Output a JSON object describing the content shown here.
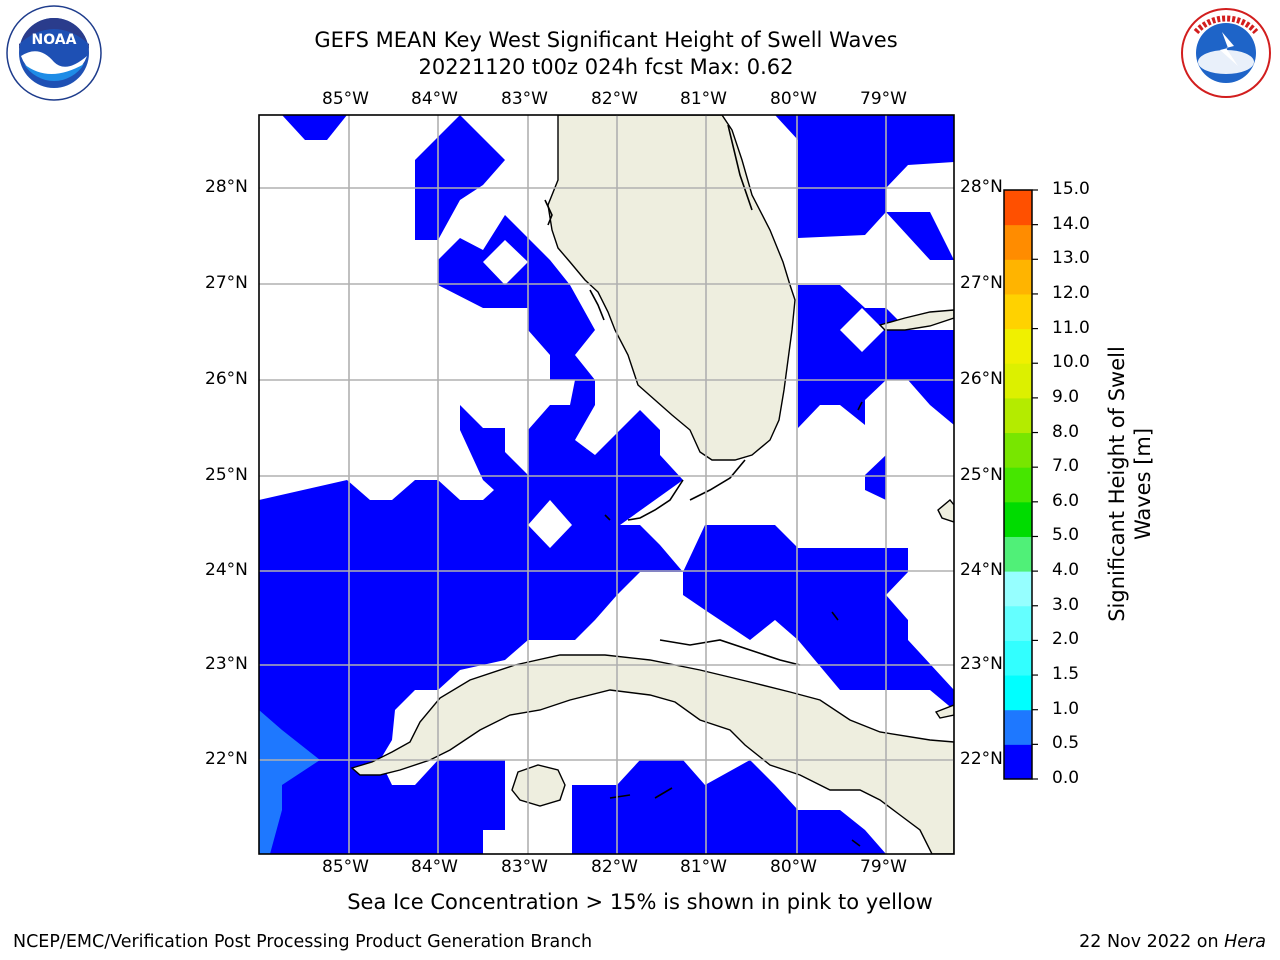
{
  "title_line1": "GEFS MEAN Key West Significant Height of Swell Waves",
  "title_line2": "20221120 t00z 024h fcst   Max: 0.62",
  "lon_labels": [
    "85°W",
    "84°W",
    "83°W",
    "82°W",
    "81°W",
    "80°W",
    "79°W"
  ],
  "lat_labels": [
    "28°N",
    "27°N",
    "26°N",
    "25°N",
    "24°N",
    "23°N",
    "22°N"
  ],
  "colorbar": {
    "title_line1": "Significant Height of Swell",
    "title_line2": "Waves [m]",
    "levels": [
      "0.0",
      "0.5",
      "1.0",
      "1.5",
      "2.0",
      "3.0",
      "4.0",
      "5.0",
      "6.0",
      "7.0",
      "8.0",
      "9.0",
      "10.0",
      "11.0",
      "12.0",
      "13.0",
      "14.0",
      "15.0"
    ],
    "colors": [
      "#0000ff",
      "#1e78ff",
      "#00ffff",
      "#32ffff",
      "#64ffff",
      "#96ffff",
      "#50f078",
      "#00dc00",
      "#46e600",
      "#78e600",
      "#b4eb00",
      "#dcf000",
      "#f0f000",
      "#ffd200",
      "#ffb400",
      "#ff8c00",
      "#ff5000",
      "#ff2800",
      "#ff0000"
    ]
  },
  "field_colors": {
    "band_0_0_5": "#0000ff",
    "band_0_5_1_0": "#1e78ff",
    "land": "#eeeedf",
    "grid": "#b0b0b0"
  },
  "note": "Sea Ice Concentration > 15% is shown in pink to yellow",
  "footer_left": "NCEP/EMC/Verification Post Processing Product Generation Branch",
  "footer_date": "22 Nov 2022 on ",
  "footer_machine": "Hera",
  "logos": {
    "left": "NOAA",
    "right": "NATIONAL WEATHER SERVICE"
  }
}
